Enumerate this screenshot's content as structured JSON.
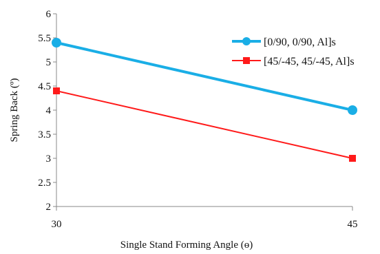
{
  "chart_data": {
    "type": "line",
    "xlabel": "Single  Stand Forming Angle  (ɵ)",
    "ylabel": "Spring Back (º)",
    "xlim": [
      30,
      45
    ],
    "ylim": [
      2,
      6
    ],
    "x_ticks": [
      "30",
      "45"
    ],
    "y_ticks": [
      "2",
      "2.5",
      "3",
      "3.5",
      "4",
      "4.5",
      "5",
      "5.5",
      "6"
    ],
    "grid": false,
    "legend_position": "top-right",
    "series": [
      {
        "name": "[0/90, 0/90, Al]s",
        "x": [
          30,
          45
        ],
        "y": [
          5.4,
          4.0
        ],
        "color": "#1aaee6",
        "marker": "circle"
      },
      {
        "name": "[45/-45, 45/-45, Al]s",
        "x": [
          30,
          45
        ],
        "y": [
          4.4,
          3.0
        ],
        "color": "#ff1a1a",
        "marker": "square"
      }
    ]
  }
}
